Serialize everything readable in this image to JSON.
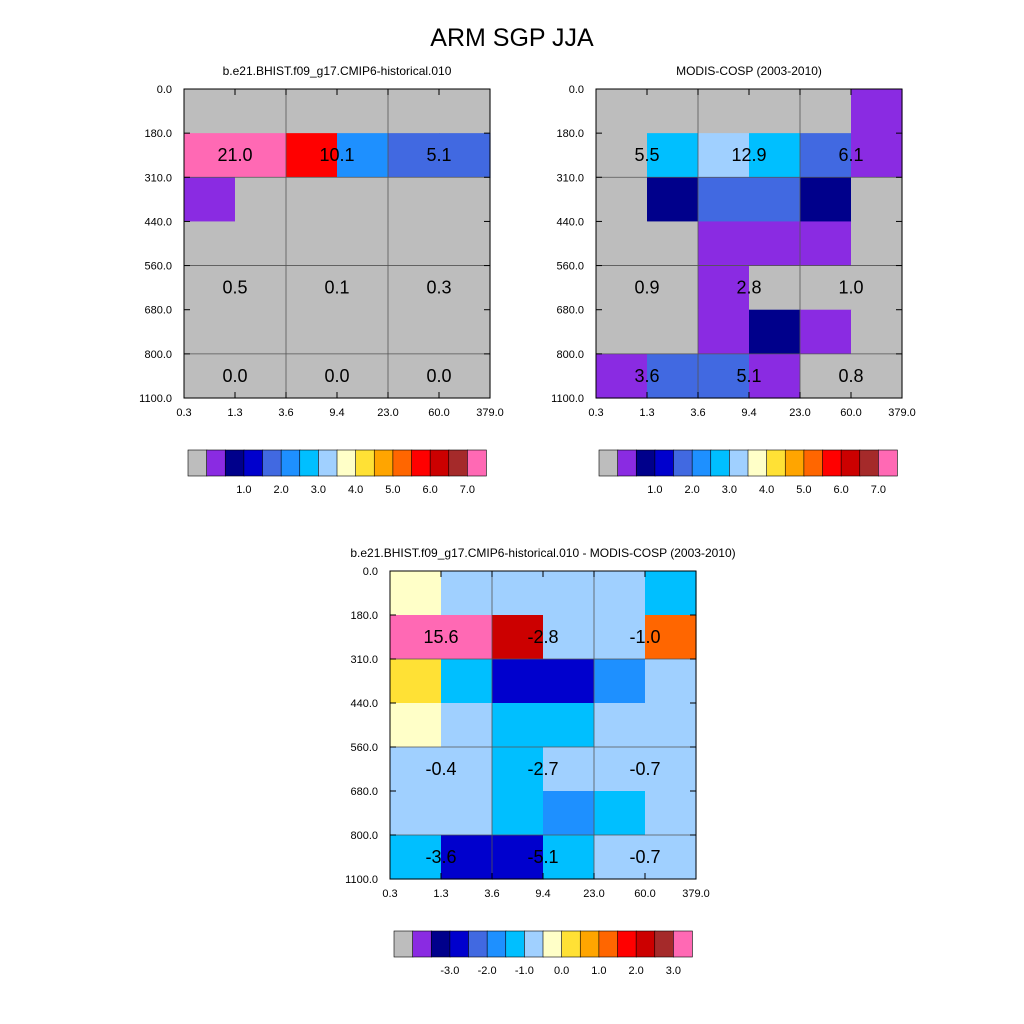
{
  "figure_title": "ARM SGP JJA",
  "chart_data": [
    {
      "type": "heatmap",
      "title": "b.e21.BHIST.f09_g17.CMIP6-historical.010",
      "x_tick_labels": [
        "0.3",
        "1.3",
        "3.6",
        "9.4",
        "23.0",
        "60.0",
        "379.0"
      ],
      "y_tick_labels": [
        "0.0",
        "180.0",
        "310.0",
        "440.0",
        "560.0",
        "680.0",
        "800.0",
        "1100.0"
      ],
      "cells": [
        [
          "#BDBDBD",
          "#BDBDBD",
          "#BDBDBD",
          "#BDBDBD",
          "#BDBDBD",
          "#BDBDBD"
        ],
        [
          "#FF69B4",
          "#FF69B4",
          "#FF0000",
          "#1E90FF",
          "#4169E1",
          "#4169E1"
        ],
        [
          "#8A2BE2",
          "#BDBDBD",
          "#BDBDBD",
          "#BDBDBD",
          "#BDBDBD",
          "#BDBDBD"
        ],
        [
          "#BDBDBD",
          "#BDBDBD",
          "#BDBDBD",
          "#BDBDBD",
          "#BDBDBD",
          "#BDBDBD"
        ],
        [
          "#BDBDBD",
          "#BDBDBD",
          "#BDBDBD",
          "#BDBDBD",
          "#BDBDBD",
          "#BDBDBD"
        ],
        [
          "#BDBDBD",
          "#BDBDBD",
          "#BDBDBD",
          "#BDBDBD",
          "#BDBDBD",
          "#BDBDBD"
        ],
        [
          "#BDBDBD",
          "#BDBDBD",
          "#BDBDBD",
          "#BDBDBD",
          "#BDBDBD",
          "#BDBDBD"
        ]
      ],
      "annotations": [
        {
          "col": 0,
          "row": 1,
          "text": "21.0"
        },
        {
          "col": 1,
          "row": 1,
          "text": "10.1"
        },
        {
          "col": 2,
          "row": 1,
          "text": "5.1"
        },
        {
          "col": 0,
          "row": 4,
          "text": "0.5"
        },
        {
          "col": 1,
          "row": 4,
          "text": "0.1"
        },
        {
          "col": 2,
          "row": 4,
          "text": "0.3"
        },
        {
          "col": 0,
          "row": 6,
          "text": "0.0"
        },
        {
          "col": 1,
          "row": 6,
          "text": "0.0"
        },
        {
          "col": 2,
          "row": 6,
          "text": "0.0"
        }
      ],
      "colorbar": {
        "colors": [
          "#BDBDBD",
          "#8A2BE2",
          "#00008B",
          "#0000CD",
          "#4169E1",
          "#1E90FF",
          "#00BFFF",
          "#A0D0FF",
          "#FFFFC8",
          "#FFE135",
          "#FFA500",
          "#FF6600",
          "#FF0000",
          "#CC0000",
          "#A52A2A",
          "#FF69B4"
        ],
        "labels": [
          "1.0",
          "2.0",
          "3.0",
          "4.0",
          "5.0",
          "6.0",
          "7.0"
        ]
      }
    },
    {
      "type": "heatmap",
      "title": "MODIS-COSP (2003-2010)",
      "x_tick_labels": [
        "0.3",
        "1.3",
        "3.6",
        "9.4",
        "23.0",
        "60.0",
        "379.0"
      ],
      "y_tick_labels": [
        "0.0",
        "180.0",
        "310.0",
        "440.0",
        "560.0",
        "680.0",
        "800.0",
        "1100.0"
      ],
      "cells": [
        [
          "#BDBDBD",
          "#BDBDBD",
          "#BDBDBD",
          "#BDBDBD",
          "#BDBDBD",
          "#8A2BE2"
        ],
        [
          "#BDBDBD",
          "#00BFFF",
          "#A0D0FF",
          "#00BFFF",
          "#4169E1",
          "#8A2BE2"
        ],
        [
          "#BDBDBD",
          "#00008B",
          "#4169E1",
          "#4169E1",
          "#00008B",
          "#BDBDBD"
        ],
        [
          "#BDBDBD",
          "#BDBDBD",
          "#8A2BE2",
          "#8A2BE2",
          "#8A2BE2",
          "#BDBDBD"
        ],
        [
          "#BDBDBD",
          "#BDBDBD",
          "#8A2BE2",
          "#BDBDBD",
          "#BDBDBD",
          "#BDBDBD"
        ],
        [
          "#BDBDBD",
          "#BDBDBD",
          "#8A2BE2",
          "#00008B",
          "#8A2BE2",
          "#BDBDBD"
        ],
        [
          "#8A2BE2",
          "#4169E1",
          "#4169E1",
          "#8A2BE2",
          "#BDBDBD",
          "#BDBDBD"
        ]
      ],
      "annotations": [
        {
          "col": 0,
          "row": 1,
          "text": "5.5"
        },
        {
          "col": 1,
          "row": 1,
          "text": "12.9"
        },
        {
          "col": 2,
          "row": 1,
          "text": "6.1"
        },
        {
          "col": 0,
          "row": 4,
          "text": "0.9"
        },
        {
          "col": 1,
          "row": 4,
          "text": "2.8"
        },
        {
          "col": 2,
          "row": 4,
          "text": "1.0"
        },
        {
          "col": 0,
          "row": 6,
          "text": "3.6"
        },
        {
          "col": 1,
          "row": 6,
          "text": "5.1"
        },
        {
          "col": 2,
          "row": 6,
          "text": "0.8"
        }
      ],
      "colorbar": {
        "colors": [
          "#BDBDBD",
          "#8A2BE2",
          "#00008B",
          "#0000CD",
          "#4169E1",
          "#1E90FF",
          "#00BFFF",
          "#A0D0FF",
          "#FFFFC8",
          "#FFE135",
          "#FFA500",
          "#FF6600",
          "#FF0000",
          "#CC0000",
          "#A52A2A",
          "#FF69B4"
        ],
        "labels": [
          "1.0",
          "2.0",
          "3.0",
          "4.0",
          "5.0",
          "6.0",
          "7.0"
        ]
      }
    },
    {
      "type": "heatmap",
      "title": "b.e21.BHIST.f09_g17.CMIP6-historical.010 - MODIS-COSP (2003-2010)",
      "x_tick_labels": [
        "0.3",
        "1.3",
        "3.6",
        "9.4",
        "23.0",
        "60.0",
        "379.0"
      ],
      "y_tick_labels": [
        "0.0",
        "180.0",
        "310.0",
        "440.0",
        "560.0",
        "680.0",
        "800.0",
        "1100.0"
      ],
      "cells": [
        [
          "#FFFFC8",
          "#A0D0FF",
          "#A0D0FF",
          "#A0D0FF",
          "#A0D0FF",
          "#00BFFF"
        ],
        [
          "#FF69B4",
          "#FF69B4",
          "#CC0000",
          "#A0D0FF",
          "#A0D0FF",
          "#FF6600"
        ],
        [
          "#FFE135",
          "#00BFFF",
          "#0000CD",
          "#0000CD",
          "#1E90FF",
          "#A0D0FF"
        ],
        [
          "#FFFFC8",
          "#A0D0FF",
          "#00BFFF",
          "#00BFFF",
          "#A0D0FF",
          "#A0D0FF"
        ],
        [
          "#A0D0FF",
          "#A0D0FF",
          "#00BFFF",
          "#A0D0FF",
          "#A0D0FF",
          "#A0D0FF"
        ],
        [
          "#A0D0FF",
          "#A0D0FF",
          "#00BFFF",
          "#1E90FF",
          "#00BFFF",
          "#A0D0FF"
        ],
        [
          "#00BFFF",
          "#0000CD",
          "#0000CD",
          "#00BFFF",
          "#A0D0FF",
          "#A0D0FF"
        ]
      ],
      "annotations": [
        {
          "col": 0,
          "row": 1,
          "text": "15.6"
        },
        {
          "col": 1,
          "row": 1,
          "text": "-2.8"
        },
        {
          "col": 2,
          "row": 1,
          "text": "-1.0"
        },
        {
          "col": 0,
          "row": 4,
          "text": "-0.4"
        },
        {
          "col": 1,
          "row": 4,
          "text": "-2.7"
        },
        {
          "col": 2,
          "row": 4,
          "text": "-0.7"
        },
        {
          "col": 0,
          "row": 6,
          "text": "-3.6"
        },
        {
          "col": 1,
          "row": 6,
          "text": "-5.1"
        },
        {
          "col": 2,
          "row": 6,
          "text": "-0.7"
        }
      ],
      "colorbar": {
        "colors": [
          "#BDBDBD",
          "#8A2BE2",
          "#00008B",
          "#0000CD",
          "#4169E1",
          "#1E90FF",
          "#00BFFF",
          "#A0D0FF",
          "#FFFFC8",
          "#FFE135",
          "#FFA500",
          "#FF6600",
          "#FF0000",
          "#CC0000",
          "#A52A2A",
          "#FF69B4"
        ],
        "labels": [
          "-3.0",
          "-2.0",
          "-1.0",
          "0.0",
          "1.0",
          "2.0",
          "3.0"
        ]
      }
    }
  ]
}
